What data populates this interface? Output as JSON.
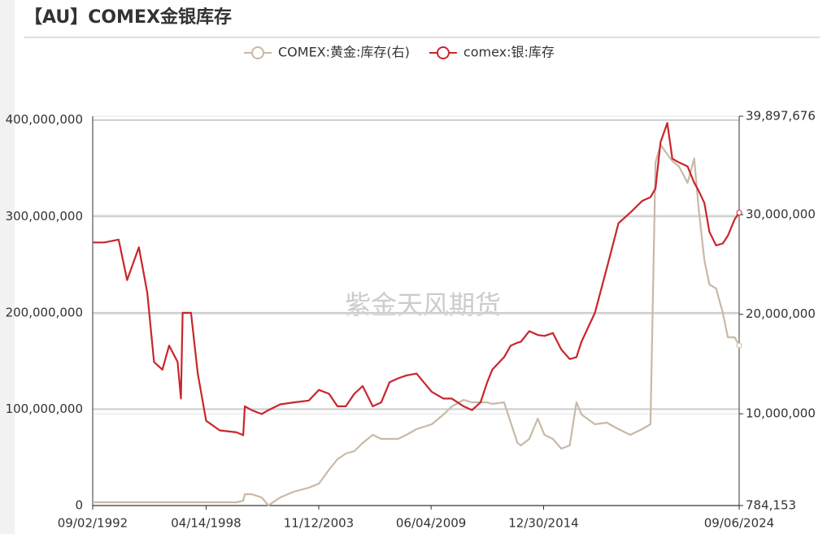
{
  "chart_data": {
    "type": "line",
    "title": "【AU】COMEX金银库存",
    "watermark": "紫金天风期货",
    "x": [
      "09/02/1992",
      "03/26/1993",
      "12/15/1993",
      "05/15/1994",
      "12/15/1994",
      "05/15/1995",
      "09/15/1995",
      "02/15/1996",
      "06/15/1996",
      "11/15/1996",
      "01/15/1997",
      "02/15/1997",
      "07/15/1997",
      "11/15/1997",
      "04/15/1998",
      "12/15/1998",
      "10/15/1999",
      "02/15/2000",
      "03/15/2000",
      "07/15/2000",
      "01/15/2001",
      "05/15/2001",
      "12/15/2001",
      "08/15/2002",
      "05/15/2003",
      "11/15/2003",
      "05/15/2004",
      "10/15/2004",
      "03/15/2005",
      "08/15/2005",
      "01/15/2006",
      "07/15/2006",
      "12/15/2006",
      "05/15/2007",
      "10/15/2007",
      "03/15/2008",
      "09/15/2008",
      "06/15/2009",
      "01/15/2010",
      "06/15/2010",
      "01/15/2011",
      "06/15/2011",
      "11/15/2011",
      "03/15/2012",
      "06/15/2012",
      "01/15/2013",
      "05/15/2013",
      "09/15/2013",
      "11/15/2013",
      "04/15/2014",
      "09/15/2014",
      "01/15/2015",
      "06/15/2015",
      "11/15/2015",
      "04/15/2016",
      "08/15/2016",
      "11/15/2016",
      "07/15/2017",
      "02/15/2018",
      "09/15/2018",
      "04/15/2019",
      "11/15/2019",
      "04/15/2020",
      "07/15/2020",
      "10/15/2020",
      "02/15/2021",
      "05/15/2021",
      "09/15/2021",
      "02/15/2022",
      "06/15/2022",
      "09/01/2022",
      "12/15/2022",
      "03/15/2023",
      "07/15/2023",
      "11/15/2023",
      "02/15/2024",
      "06/15/2024",
      "09/06/2024"
    ],
    "xlim": [
      "09/02/1992",
      "09/06/2024"
    ],
    "xticks": [
      "09/02/1992",
      "04/14/1998",
      "11/12/2003",
      "06/04/2009",
      "12/30/2014",
      "09/06/2024"
    ],
    "ylim": [
      0,
      404000000
    ],
    "yticks": [
      0,
      {
        "value": 100000000,
        "label": "100,000,000"
      },
      {
        "value": 200000000,
        "label": "200,000,000"
      },
      {
        "value": 300000000,
        "label": "300,000,000"
      },
      {
        "value": 400000000,
        "label": "400,000,000"
      }
    ],
    "y2lim": [
      784153,
      39897676
    ],
    "y2ticks": [
      {
        "value": 784153,
        "label": "784,153"
      },
      {
        "value": 10000000,
        "label": "10,000,000"
      },
      {
        "value": 20000000,
        "label": "20,000,000"
      },
      {
        "value": 30000000,
        "label": "30,000,000"
      },
      {
        "value": 39897676,
        "label": "39,897,676"
      }
    ],
    "grid": true,
    "series": [
      {
        "name": "COMEX:黄金:库存(右)",
        "color": "#c8b9a6",
        "axis": "y2",
        "values": [
          1110000,
          1110000,
          1110000,
          1110000,
          1110000,
          1110000,
          1110000,
          1110000,
          1110000,
          1110000,
          1110000,
          1110000,
          1110000,
          1110000,
          1110000,
          1110000,
          1110000,
          1274000,
          1927000,
          1927000,
          1601000,
          800000,
          1601000,
          2172000,
          2581000,
          2989000,
          4377000,
          5439000,
          6010000,
          6255000,
          7072000,
          7888000,
          7480000,
          7480000,
          7480000,
          7888000,
          8460000,
          8950000,
          9930000,
          10746000,
          11400000,
          11155000,
          11155000,
          11155000,
          10991000,
          11155000,
          9113000,
          7072000,
          6827000,
          7480000,
          9521000,
          7888000,
          7480000,
          6500000,
          6827000,
          11155000,
          9930000,
          8950000,
          9113000,
          8460000,
          7888000,
          8460000,
          8950000,
          35243000,
          37040000,
          36060000,
          35405000,
          34835000,
          33200000,
          35650000,
          30753000,
          25445000,
          22995000,
          22587000,
          20136000,
          17687000,
          17687000,
          16870000
        ]
      },
      {
        "name": "comex:银:库存",
        "color": "#c9252c",
        "values": [
          273000000,
          273000000,
          276000000,
          234000000,
          268000000,
          221000000,
          149000000,
          141000000,
          166000000,
          149000000,
          111000000,
          200000000,
          200000000,
          137000000,
          88000000,
          78000000,
          76000000,
          73000000,
          103000000,
          99000000,
          95000000,
          99000000,
          105000000,
          107000000,
          109000000,
          120000000,
          116000000,
          103000000,
          103000000,
          116000000,
          124000000,
          103000000,
          107000000,
          128000000,
          132000000,
          135000000,
          137000000,
          118000000,
          111000000,
          111000000,
          103000000,
          99000000,
          107000000,
          128000000,
          141000000,
          154000000,
          166000000,
          169000000,
          170000000,
          181000000,
          177000000,
          176000000,
          179000000,
          162000000,
          152000000,
          154000000,
          170000000,
          200000000,
          246000000,
          293000000,
          304000000,
          316000000,
          320000000,
          329000000,
          377000000,
          397000000,
          360000000,
          356000000,
          352000000,
          335000000,
          327000000,
          314000000,
          284000000,
          270000000,
          272000000,
          280000000,
          297000000,
          304000000
        ]
      }
    ]
  }
}
